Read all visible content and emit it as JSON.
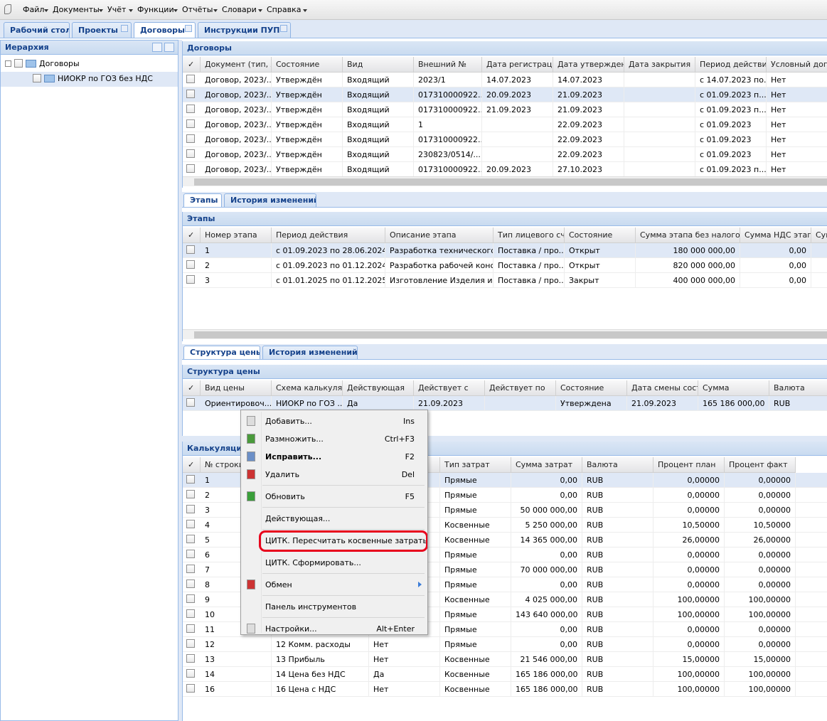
{
  "check_mark": "✓",
  "menu": [
    "Файл",
    "Документы",
    "Учёт",
    "Функции",
    "Отчёты",
    "Словари",
    "Справка"
  ],
  "tabs": [
    {
      "label": "Рабочий стол",
      "closable": false
    },
    {
      "label": "Проекты",
      "closable": true
    },
    {
      "label": "Договоры",
      "closable": true,
      "active": true
    },
    {
      "label": "Инструкции ПУП",
      "closable": true
    }
  ],
  "hierarchy": {
    "title": "Иерархия",
    "nodes": [
      "Договоры",
      "НИОКР по ГОЗ без НДС"
    ]
  },
  "contracts": {
    "title": "Договоры",
    "selected_row": 1,
    "columns": [
      "Документ (тип, №",
      "Состояние",
      "Вид",
      "Внешний №",
      "Дата регистрации",
      "Дата утверждения",
      "Дата закрытия",
      "Период действия",
      "Условный договор"
    ],
    "rows": [
      [
        "Договор, 2023/...",
        "Утверждён",
        "Входящий",
        "2023/1",
        "14.07.2023",
        "14.07.2023",
        null,
        "с 14.07.2023 по...",
        "Нет"
      ],
      [
        "Договор, 2023/...",
        "Утверждён",
        "Входящий",
        "017310000922...",
        "20.09.2023",
        "21.09.2023",
        null,
        "с 01.09.2023 п...",
        "Нет"
      ],
      [
        "Договор, 2023/...",
        "Утверждён",
        "Входящий",
        "017310000922...",
        "21.09.2023",
        "21.09.2023",
        null,
        "с 01.09.2023 п...",
        "Нет"
      ],
      [
        "Договор, 2023/...",
        "Утверждён",
        "Входящий",
        "1",
        null,
        "22.09.2023",
        null,
        "с 01.09.2023",
        "Нет"
      ],
      [
        "Договор, 2023/...",
        "Утверждён",
        "Входящий",
        "017310000922...",
        null,
        "22.09.2023",
        null,
        "с 01.09.2023",
        "Нет"
      ],
      [
        "Договор, 2023/...",
        "Утверждён",
        "Входящий",
        "230823/0514/...",
        null,
        "22.09.2023",
        null,
        "с 01.09.2023",
        "Нет"
      ],
      [
        "Договор, 2023/...",
        "Утверждён",
        "Входящий",
        "017310000922...",
        "20.09.2023",
        "27.10.2023",
        null,
        "с 01.09.2023 п...",
        "Нет"
      ]
    ]
  },
  "stage_tabs": [
    "Этапы",
    "История изменений"
  ],
  "stages": {
    "title": "Этапы",
    "selected_row": 0,
    "columns": [
      "Номер этапа",
      "Период действия",
      "Описание этапа",
      "Тип лицевого счёта",
      "Состояние",
      "Сумма этапа без налогов",
      "Сумма НДС этапа",
      "Сумма"
    ],
    "rows": [
      [
        "1",
        "с 01.09.2023 по 28.06.2024",
        "Разработка технического...",
        "Поставка / про...",
        "Открыт",
        "180 000 000,00",
        "0,00",
        null
      ],
      [
        "2",
        "с 01.09.2023 по 01.12.2024",
        "Разработка рабочей конс...",
        "Поставка / про...",
        "Открыт",
        "820 000 000,00",
        "0,00",
        null
      ],
      [
        "3",
        "с 01.01.2025 по 01.12.2025",
        "Изготовление Изделия и ...",
        "Поставка / про...",
        "Закрыт",
        "400 000 000,00",
        "0,00",
        null
      ]
    ]
  },
  "price_tabs": [
    "Структура цены",
    "История изменений"
  ],
  "price": {
    "title": "Структура цены",
    "selected_row": 0,
    "columns": [
      "Вид цены",
      "Схема калькуляции",
      "Действующая",
      "Действует с",
      "Действует по",
      "Состояние",
      "Дата смены состояния",
      "Сумма",
      "Валюта"
    ],
    "rows": [
      [
        "Ориентировоч...",
        "НИОКР по ГОЗ ...",
        "Да",
        "21.09.2023",
        null,
        "Утверждена",
        "21.09.2023",
        "165 186 000,00",
        "RUB"
      ]
    ]
  },
  "calc": {
    "title": "Калькуляция",
    "selected_row": 0,
    "columns": [
      "№ строки",
      null,
      null,
      "Тип затрат",
      "Сумма затрат",
      "Валюта",
      "Процент план",
      "Процент факт"
    ],
    "rows": [
      [
        "1",
        null,
        null,
        "Прямые",
        "0,00",
        "RUB",
        "0,00000",
        "0,00000"
      ],
      [
        "2",
        null,
        null,
        "Прямые",
        "0,00",
        "RUB",
        "0,00000",
        "0,00000"
      ],
      [
        "3",
        null,
        null,
        "Прямые",
        "50 000 000,00",
        "RUB",
        "0,00000",
        "0,00000"
      ],
      [
        "4",
        null,
        null,
        "Косвенные",
        "5 250 000,00",
        "RUB",
        "10,50000",
        "10,50000"
      ],
      [
        "5",
        null,
        null,
        "Косвенные",
        "14 365 000,00",
        "RUB",
        "26,00000",
        "26,00000"
      ],
      [
        "6",
        null,
        null,
        "Прямые",
        "0,00",
        "RUB",
        "0,00000",
        "0,00000"
      ],
      [
        "7",
        null,
        null,
        "Прямые",
        "70 000 000,00",
        "RUB",
        "0,00000",
        "0,00000"
      ],
      [
        "8",
        null,
        null,
        "Прямые",
        "0,00",
        "RUB",
        "0,00000",
        "0,00000"
      ],
      [
        "9",
        null,
        null,
        "Косвенные",
        "4 025 000,00",
        "RUB",
        "100,00000",
        "100,00000"
      ],
      [
        "10",
        null,
        null,
        "Прямые",
        "143 640 000,00",
        "RUB",
        "100,00000",
        "100,00000"
      ],
      [
        "11",
        null,
        null,
        "Прямые",
        "0,00",
        "RUB",
        "0,00000",
        "0,00000"
      ],
      [
        "12",
        "12 Комм. расходы",
        "Нет",
        "Прямые",
        "0,00",
        "RUB",
        "0,00000",
        "0,00000"
      ],
      [
        "13",
        "13 Прибыль",
        "Нет",
        "Косвенные",
        "21 546 000,00",
        "RUB",
        "15,00000",
        "15,00000"
      ],
      [
        "14",
        "14 Цена без НДС",
        "Да",
        "Косвенные",
        "165 186 000,00",
        "RUB",
        "100,00000",
        "100,00000"
      ],
      [
        "16",
        "16 Цена с НДС",
        "Нет",
        "Косвенные",
        "165 186 000,00",
        "RUB",
        "100,00000",
        "100,00000"
      ]
    ]
  },
  "context_menu": {
    "groups": [
      [
        {
          "label": "Добавить...",
          "shortcut": "Ins"
        },
        {
          "label": "Размножить...",
          "shortcut": "Ctrl+F3"
        },
        {
          "label": "Исправить...",
          "shortcut": "F2",
          "bold": true
        },
        {
          "label": "Удалить",
          "shortcut": "Del"
        }
      ],
      [
        {
          "label": "Обновить",
          "shortcut": "F5"
        }
      ],
      [
        {
          "label": "Действующая..."
        }
      ],
      [
        {
          "label": "ЦИТК. Пересчитать косвенные затраты...",
          "highlighted": true
        },
        {
          "label": "ЦИТК. Сформировать..."
        }
      ],
      [
        {
          "label": "Обмен",
          "submenu": true
        }
      ],
      [
        {
          "label": "Панель инструментов"
        }
      ],
      [
        {
          "label": "Настройки...",
          "shortcut": "Alt+Enter"
        }
      ]
    ]
  }
}
